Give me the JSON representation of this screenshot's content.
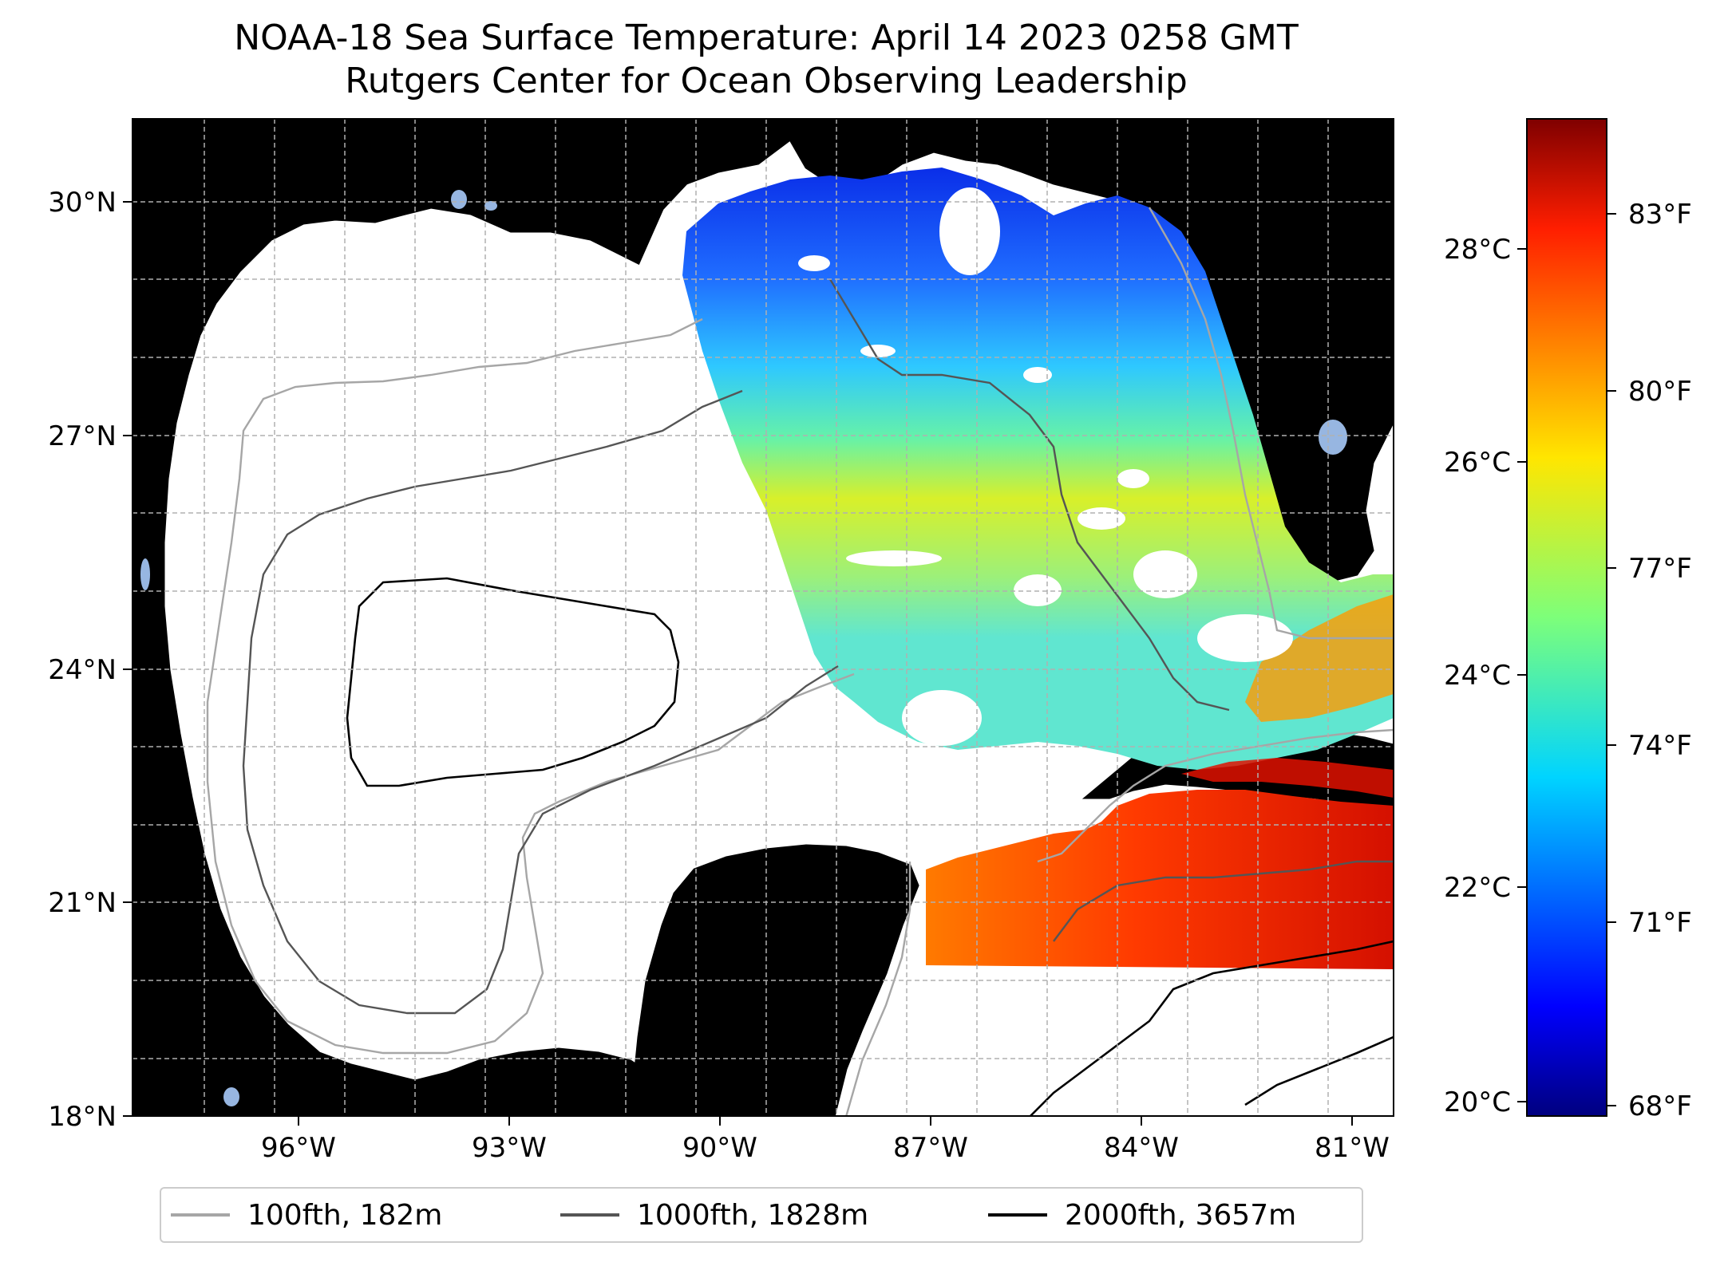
{
  "title": {
    "line1": "NOAA-18 Sea Surface Temperature: April 14 2023 0258 GMT",
    "line2": "Rutgers Center for Ocean Observing Leadership"
  },
  "map": {
    "lat_ticks": [
      "30°N",
      "27°N",
      "24°N",
      "21°N",
      "18°N"
    ],
    "lon_ticks": [
      "96°W",
      "93°W",
      "90°W",
      "87°W",
      "84°W",
      "81°W"
    ],
    "lat_range": [
      18,
      30.5
    ],
    "lon_range": [
      -98.3,
      -80.4
    ],
    "colors": {
      "land": "#d2b48c",
      "water_body": "#97b6e1",
      "grid": "#b0b0b0"
    }
  },
  "colorbar": {
    "celsius_ticks": [
      "28°C",
      "26°C",
      "24°C",
      "22°C",
      "20°C"
    ],
    "fahrenheit_ticks": [
      "83°F",
      "80°F",
      "77°F",
      "74°F",
      "71°F",
      "68°F"
    ],
    "colormap": "jet"
  },
  "legend": {
    "items": [
      {
        "label": "100fth, 182m",
        "color": "#a6a6a6"
      },
      {
        "label": "1000fth, 1828m",
        "color": "#555555"
      },
      {
        "label": "2000fth, 3657m",
        "color": "#000000"
      }
    ]
  }
}
